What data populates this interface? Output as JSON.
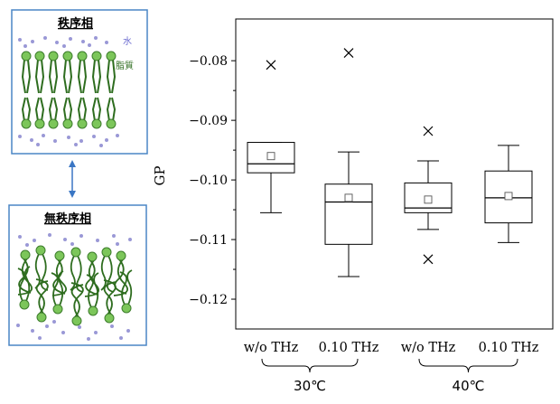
{
  "diagram": {
    "ordered_title": "秩序相",
    "disordered_title": "無秩序相",
    "legend_water": "水",
    "legend_lipid": "脂質",
    "colors": {
      "panel_border": "#4a86c5",
      "lipid_head": "#7cc65a",
      "lipid_head_stroke": "#3d7d2c",
      "lipid_tail": "#2e6d1f",
      "water": "#9a98d6",
      "water_label": "#6b6bd0",
      "lipid_label": "#2e6d1f",
      "arrow": "#3a76c4"
    }
  },
  "chart_data": {
    "type": "box",
    "ylabel": "GP",
    "ylim": [
      -0.125,
      -0.073
    ],
    "yticks": [
      -0.08,
      -0.09,
      -0.1,
      -0.11,
      -0.12
    ],
    "yticklabels": [
      "−0.08",
      "−0.09",
      "−0.10",
      "−0.11",
      "−0.12"
    ],
    "categories": [
      "w/o THz",
      "0.10 THz",
      "w/o THz",
      "0.10 THz"
    ],
    "groups": [
      {
        "label": "30℃",
        "indices": [
          0,
          1
        ]
      },
      {
        "label": "40℃",
        "indices": [
          2,
          3
        ]
      }
    ],
    "boxes": [
      {
        "whisker_low": -0.1055,
        "q1": -0.0988,
        "median": -0.0973,
        "q3": -0.0937,
        "whisker_high": -0.0937,
        "mean": -0.096,
        "outliers": [
          -0.0807
        ]
      },
      {
        "whisker_low": -0.1162,
        "q1": -0.1108,
        "median": -0.1037,
        "q3": -0.1007,
        "whisker_high": -0.0953,
        "mean": -0.103,
        "outliers": [
          -0.0787
        ]
      },
      {
        "whisker_low": -0.1083,
        "q1": -0.1055,
        "median": -0.1047,
        "q3": -0.1005,
        "whisker_high": -0.0968,
        "mean": -0.1033,
        "outliers": [
          -0.0918,
          -0.1133
        ]
      },
      {
        "whisker_low": -0.1105,
        "q1": -0.1072,
        "median": -0.103,
        "q3": -0.0985,
        "whisker_high": -0.0942,
        "mean": -0.1027,
        "outliers": []
      }
    ]
  }
}
